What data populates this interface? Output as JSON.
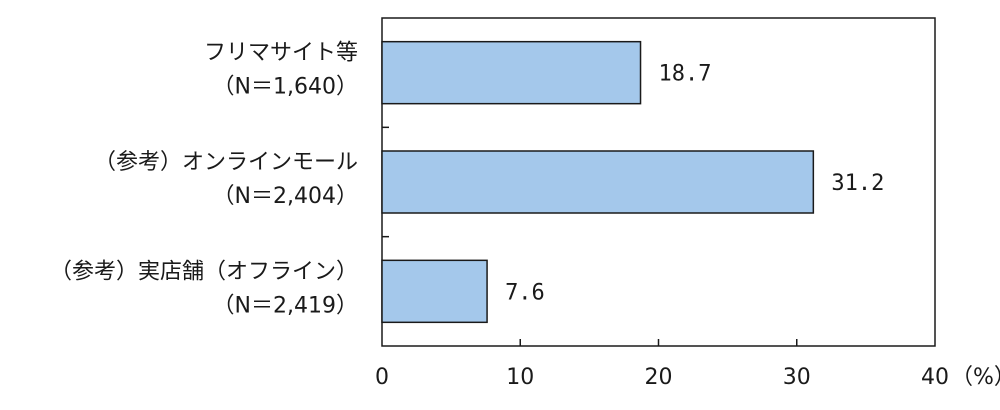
{
  "chart_data": {
    "type": "bar",
    "orientation": "horizontal",
    "categories": [
      [
        "フリマサイト等",
        "（N＝1,640）"
      ],
      [
        "（参考）オンラインモール",
        "（N＝2,404）"
      ],
      [
        "（参考）実店舗（オフライン）",
        "（N＝2,419）"
      ]
    ],
    "values": [
      18.7,
      31.2,
      7.6
    ],
    "value_labels": [
      "18.7",
      "31.2",
      "7.6"
    ],
    "xlim": [
      0,
      40
    ],
    "xticks": [
      0,
      10,
      20,
      30,
      40
    ],
    "xtick_labels": [
      "0",
      "10",
      "20",
      "30",
      "40"
    ],
    "x_unit": "（%）",
    "grid": false,
    "bar_color": "#a4c8eb",
    "bar_edge_color": "#1a1a1a"
  }
}
